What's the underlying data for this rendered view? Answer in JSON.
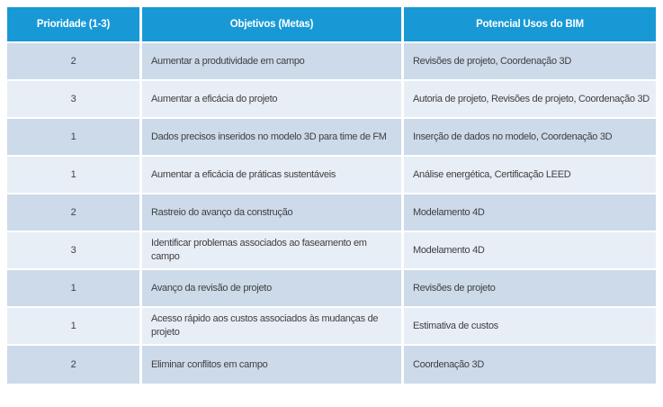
{
  "colors": {
    "header_bg": "#1899D5",
    "header_text": "#FFFFFF",
    "row_odd": "#CCDAEA",
    "row_even": "#E8EEF6",
    "body_text": "#3F3F3F"
  },
  "table": {
    "columns": [
      {
        "label": "Prioridade (1-3)"
      },
      {
        "label": "Objetivos (Metas)"
      },
      {
        "label": "Potencial Usos do BIM"
      }
    ],
    "rows": [
      {
        "prioridade": "2",
        "objetivo": "Aumentar a produtividade em campo",
        "usos": "Revisões de projeto, Coordenação 3D"
      },
      {
        "prioridade": "3",
        "objetivo": "Aumentar a eficácia do projeto",
        "usos": "Autoria de projeto, Revisões de projeto, Coordenação 3D"
      },
      {
        "prioridade": "1",
        "objetivo": "Dados precisos inseridos no modelo 3D para time de FM",
        "usos": "Inserção de dados no modelo, Coordenação 3D"
      },
      {
        "prioridade": "1",
        "objetivo": "Aumentar a eficácia de práticas sustentáveis",
        "usos": "Análise energética, Certificação LEED"
      },
      {
        "prioridade": "2",
        "objetivo": "Rastreio do avanço da construção",
        "usos": "Modelamento 4D"
      },
      {
        "prioridade": "3",
        "objetivo": "Identificar problemas associados ao faseamento em\ncampo",
        "usos": "Modelamento 4D"
      },
      {
        "prioridade": "1",
        "objetivo": "Avanço da revisão de projeto",
        "usos": "Revisões de projeto"
      },
      {
        "prioridade": "1",
        "objetivo": "Acesso rápido aos custos associados às mudanças de\nprojeto",
        "usos": "Estimativa de custos"
      },
      {
        "prioridade": "2",
        "objetivo": "Eliminar conflitos em campo",
        "usos": "Coordenação 3D"
      }
    ]
  }
}
